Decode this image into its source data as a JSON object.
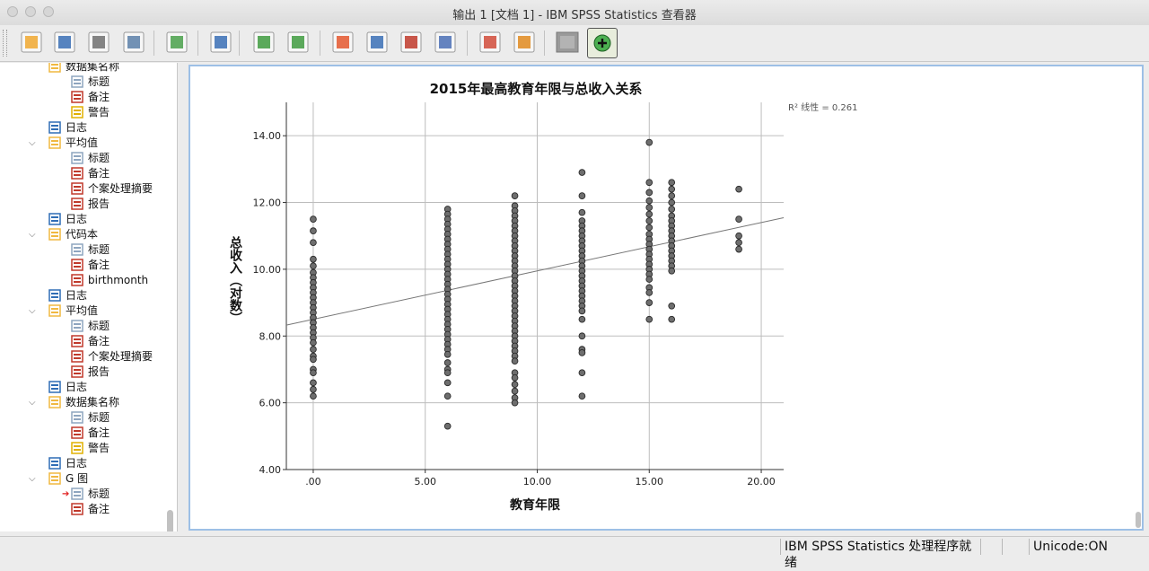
{
  "window": {
    "title": "输出 1 [文档 1] - IBM SPSS Statistics 查看器"
  },
  "toolbar": {
    "buttons": [
      "open-icon",
      "save-icon",
      "print-icon",
      "print-preview-icon",
      "export-icon",
      "data-editor-icon",
      "undo-icon",
      "redo-icon",
      "goto-data-icon",
      "goto-case-icon",
      "insert-variable-icon",
      "variables-icon",
      "edit-output-icon",
      "script-icon",
      "designate-window-icon",
      "zoom-in-icon"
    ]
  },
  "nav": {
    "items": [
      {
        "label": "数据集名称",
        "level": 1,
        "icon": "dataset-icon"
      },
      {
        "label": "标题",
        "level": 2,
        "icon": "title-icon"
      },
      {
        "label": "备注",
        "level": 2,
        "icon": "notes-icon"
      },
      {
        "label": "警告",
        "level": 2,
        "icon": "warning-icon"
      },
      {
        "label": "日志",
        "level": 1,
        "icon": "log-icon"
      },
      {
        "label": "平均值",
        "level": 1,
        "icon": "procedure-icon",
        "chevron": true
      },
      {
        "label": "标题",
        "level": 2,
        "icon": "title-icon"
      },
      {
        "label": "备注",
        "level": 2,
        "icon": "notes-icon"
      },
      {
        "label": "个案处理摘要",
        "level": 2,
        "icon": "table-icon"
      },
      {
        "label": "报告",
        "level": 2,
        "icon": "table-icon"
      },
      {
        "label": "日志",
        "level": 1,
        "icon": "log-icon"
      },
      {
        "label": "代码本",
        "level": 1,
        "icon": "procedure-icon",
        "chevron": true
      },
      {
        "label": "标题",
        "level": 2,
        "icon": "title-icon"
      },
      {
        "label": "备注",
        "level": 2,
        "icon": "notes-icon"
      },
      {
        "label": "birthmonth",
        "level": 2,
        "icon": "table-icon"
      },
      {
        "label": "日志",
        "level": 1,
        "icon": "log-icon"
      },
      {
        "label": "平均值",
        "level": 1,
        "icon": "procedure-icon",
        "chevron": true
      },
      {
        "label": "标题",
        "level": 2,
        "icon": "title-icon"
      },
      {
        "label": "备注",
        "level": 2,
        "icon": "notes-icon"
      },
      {
        "label": "个案处理摘要",
        "level": 2,
        "icon": "table-icon"
      },
      {
        "label": "报告",
        "level": 2,
        "icon": "table-icon"
      },
      {
        "label": "日志",
        "level": 1,
        "icon": "log-icon"
      },
      {
        "label": "数据集名称",
        "level": 1,
        "icon": "procedure-icon",
        "chevron": true
      },
      {
        "label": "标题",
        "level": 2,
        "icon": "title-icon"
      },
      {
        "label": "备注",
        "level": 2,
        "icon": "notes-icon"
      },
      {
        "label": "警告",
        "level": 2,
        "icon": "warning-icon"
      },
      {
        "label": "日志",
        "level": 1,
        "icon": "log-icon"
      },
      {
        "label": "G 图",
        "level": 1,
        "icon": "procedure-icon",
        "chevron": true
      },
      {
        "label": "标题",
        "level": 2,
        "icon": "title-icon",
        "selected": true
      },
      {
        "label": "备注",
        "level": 2,
        "icon": "notes-icon"
      }
    ]
  },
  "status": {
    "processor": "IBM SPSS Statistics 处理程序就绪",
    "unicode": "Unicode:ON"
  },
  "chart_data": {
    "type": "scatter",
    "title": "2015年最高教育年限与总收入关系",
    "xlabel": "教育年限",
    "ylabel": "总收入（对数）",
    "xlim": [
      -1.2,
      21.0
    ],
    "ylim": [
      4.0,
      15.0
    ],
    "x_ticks": [
      ".00",
      "5.00",
      "10.00",
      "15.00",
      "20.00"
    ],
    "x_tick_values": [
      0,
      5,
      10,
      15,
      20
    ],
    "y_ticks": [
      "4.00",
      "6.00",
      "8.00",
      "10.00",
      "12.00",
      "14.00"
    ],
    "y_tick_values": [
      4,
      6,
      8,
      10,
      12,
      14
    ],
    "grid": true,
    "annotation": "R² 线性 = 0.261",
    "fit_line": {
      "intercept": 8.5,
      "slope": 0.145
    },
    "points": [
      [
        0,
        11.5
      ],
      [
        0,
        11.15
      ],
      [
        0,
        10.8
      ],
      [
        0,
        10.3
      ],
      [
        0,
        10.1
      ],
      [
        0,
        9.9
      ],
      [
        0,
        9.75
      ],
      [
        0,
        9.6
      ],
      [
        0,
        9.45
      ],
      [
        0,
        9.3
      ],
      [
        0,
        9.15
      ],
      [
        0,
        9.0
      ],
      [
        0,
        8.85
      ],
      [
        0,
        8.7
      ],
      [
        0,
        8.55
      ],
      [
        0,
        8.4
      ],
      [
        0,
        8.25
      ],
      [
        0,
        8.1
      ],
      [
        0,
        7.95
      ],
      [
        0,
        7.8
      ],
      [
        0,
        7.6
      ],
      [
        0,
        7.4
      ],
      [
        0,
        7.3
      ],
      [
        0,
        7.0
      ],
      [
        0,
        6.9
      ],
      [
        0,
        6.6
      ],
      [
        0,
        6.4
      ],
      [
        0,
        6.2
      ],
      [
        6,
        11.8
      ],
      [
        6,
        11.65
      ],
      [
        6,
        11.5
      ],
      [
        6,
        11.35
      ],
      [
        6,
        11.2
      ],
      [
        6,
        11.05
      ],
      [
        6,
        10.9
      ],
      [
        6,
        10.75
      ],
      [
        6,
        10.6
      ],
      [
        6,
        10.45
      ],
      [
        6,
        10.3
      ],
      [
        6,
        10.15
      ],
      [
        6,
        10.0
      ],
      [
        6,
        9.85
      ],
      [
        6,
        9.7
      ],
      [
        6,
        9.55
      ],
      [
        6,
        9.4
      ],
      [
        6,
        9.25
      ],
      [
        6,
        9.1
      ],
      [
        6,
        8.95
      ],
      [
        6,
        8.8
      ],
      [
        6,
        8.65
      ],
      [
        6,
        8.5
      ],
      [
        6,
        8.35
      ],
      [
        6,
        8.2
      ],
      [
        6,
        8.05
      ],
      [
        6,
        7.9
      ],
      [
        6,
        7.75
      ],
      [
        6,
        7.6
      ],
      [
        6,
        7.45
      ],
      [
        6,
        7.2
      ],
      [
        6,
        7.0
      ],
      [
        6,
        6.9
      ],
      [
        6,
        6.6
      ],
      [
        6,
        6.2
      ],
      [
        6,
        5.3
      ],
      [
        9,
        12.2
      ],
      [
        9,
        11.9
      ],
      [
        9,
        11.75
      ],
      [
        9,
        11.6
      ],
      [
        9,
        11.45
      ],
      [
        9,
        11.3
      ],
      [
        9,
        11.15
      ],
      [
        9,
        11.0
      ],
      [
        9,
        10.85
      ],
      [
        9,
        10.7
      ],
      [
        9,
        10.55
      ],
      [
        9,
        10.4
      ],
      [
        9,
        10.25
      ],
      [
        9,
        10.1
      ],
      [
        9,
        9.95
      ],
      [
        9,
        9.8
      ],
      [
        9,
        9.65
      ],
      [
        9,
        9.5
      ],
      [
        9,
        9.35
      ],
      [
        9,
        9.2
      ],
      [
        9,
        9.05
      ],
      [
        9,
        8.9
      ],
      [
        9,
        8.75
      ],
      [
        9,
        8.6
      ],
      [
        9,
        8.45
      ],
      [
        9,
        8.3
      ],
      [
        9,
        8.15
      ],
      [
        9,
        8.0
      ],
      [
        9,
        7.85
      ],
      [
        9,
        7.7
      ],
      [
        9,
        7.55
      ],
      [
        9,
        7.4
      ],
      [
        9,
        7.25
      ],
      [
        9,
        6.9
      ],
      [
        9,
        6.75
      ],
      [
        9,
        6.55
      ],
      [
        9,
        6.35
      ],
      [
        9,
        6.15
      ],
      [
        9,
        6.0
      ],
      [
        12,
        12.9
      ],
      [
        12,
        12.2
      ],
      [
        12,
        11.7
      ],
      [
        12,
        11.45
      ],
      [
        12,
        11.3
      ],
      [
        12,
        11.15
      ],
      [
        12,
        11.0
      ],
      [
        12,
        10.85
      ],
      [
        12,
        10.7
      ],
      [
        12,
        10.55
      ],
      [
        12,
        10.4
      ],
      [
        12,
        10.25
      ],
      [
        12,
        10.1
      ],
      [
        12,
        9.95
      ],
      [
        12,
        9.8
      ],
      [
        12,
        9.65
      ],
      [
        12,
        9.5
      ],
      [
        12,
        9.35
      ],
      [
        12,
        9.2
      ],
      [
        12,
        9.05
      ],
      [
        12,
        8.9
      ],
      [
        12,
        8.75
      ],
      [
        12,
        8.5
      ],
      [
        12,
        8.0
      ],
      [
        12,
        7.6
      ],
      [
        12,
        7.5
      ],
      [
        12,
        6.9
      ],
      [
        12,
        6.2
      ],
      [
        15,
        13.8
      ],
      [
        15,
        12.6
      ],
      [
        15,
        12.3
      ],
      [
        15,
        12.05
      ],
      [
        15,
        11.85
      ],
      [
        15,
        11.65
      ],
      [
        15,
        11.45
      ],
      [
        15,
        11.25
      ],
      [
        15,
        11.05
      ],
      [
        15,
        10.9
      ],
      [
        15,
        10.75
      ],
      [
        15,
        10.6
      ],
      [
        15,
        10.45
      ],
      [
        15,
        10.3
      ],
      [
        15,
        10.15
      ],
      [
        15,
        10.0
      ],
      [
        15,
        9.85
      ],
      [
        15,
        9.7
      ],
      [
        15,
        9.45
      ],
      [
        15,
        9.3
      ],
      [
        15,
        9.0
      ],
      [
        15,
        8.5
      ],
      [
        16,
        12.6
      ],
      [
        16,
        12.4
      ],
      [
        16,
        12.2
      ],
      [
        16,
        12.0
      ],
      [
        16,
        11.8
      ],
      [
        16,
        11.6
      ],
      [
        16,
        11.45
      ],
      [
        16,
        11.3
      ],
      [
        16,
        11.15
      ],
      [
        16,
        11.0
      ],
      [
        16,
        10.85
      ],
      [
        16,
        10.7
      ],
      [
        16,
        10.55
      ],
      [
        16,
        10.4
      ],
      [
        16,
        10.25
      ],
      [
        16,
        10.1
      ],
      [
        16,
        9.95
      ],
      [
        16,
        8.9
      ],
      [
        16,
        8.5
      ],
      [
        19,
        12.4
      ],
      [
        19,
        11.5
      ],
      [
        19,
        11.0
      ],
      [
        19,
        10.8
      ],
      [
        19,
        10.6
      ]
    ]
  }
}
